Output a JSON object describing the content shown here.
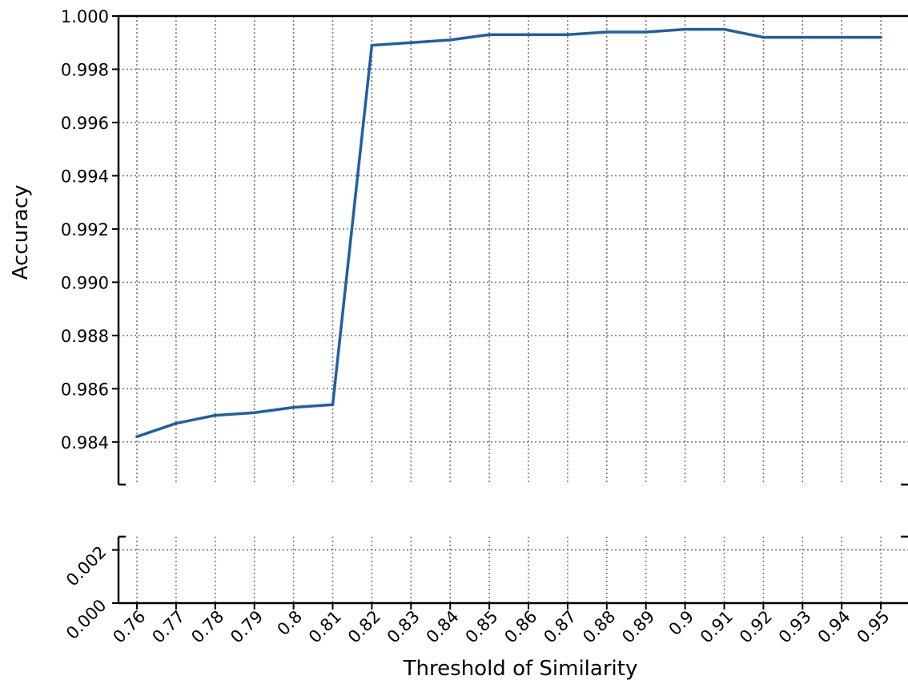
{
  "chart_data": {
    "type": "line",
    "xlabel": "Threshold of Similarity",
    "ylabel": "Accuracy",
    "x": [
      "0.76",
      "0.77",
      "0.78",
      "0.79",
      "0.8",
      "0.81",
      "0.82",
      "0.83",
      "0.84",
      "0.85",
      "0.86",
      "0.87",
      "0.88",
      "0.89",
      "0.9",
      "0.91",
      "0.92",
      "0.93",
      "0.94",
      "0.95"
    ],
    "series": [
      {
        "values": [
          0.9842,
          0.9847,
          0.985,
          0.9851,
          0.9853,
          0.9854,
          0.9989,
          0.999,
          0.9991,
          0.9993,
          0.9993,
          0.9993,
          0.9994,
          0.9994,
          0.9995,
          0.9995,
          0.9992,
          0.9992,
          0.9992,
          0.9992
        ],
        "color": "#1f5fa8"
      }
    ],
    "broken_y_axis": {
      "upper": {
        "ylim": [
          0.9824,
          1.0
        ],
        "ticks": [
          "0.984",
          "0.986",
          "0.988",
          "0.990",
          "0.992",
          "0.994",
          "0.996",
          "0.998",
          "1.000"
        ]
      },
      "lower": {
        "ylim": [
          0.0,
          0.0025
        ],
        "ticks": [
          "0.000",
          "0.002"
        ]
      }
    },
    "grid": true,
    "grid_style": "dotted"
  }
}
